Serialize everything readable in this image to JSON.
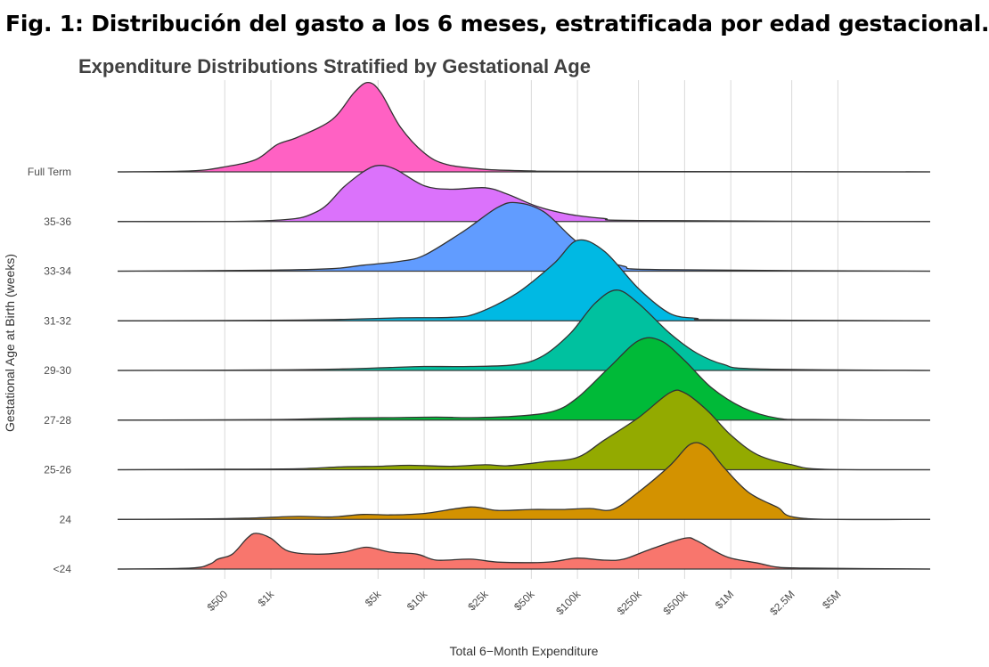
{
  "figure_caption": "Fig. 1: Distribución del gasto a los 6 meses, estratificada por edad gestacional.",
  "chart_data": {
    "type": "area",
    "subtype": "ridgeline-density",
    "title": "Expenditure Distributions Stratified by Gestational Age",
    "xlabel": "Total 6−Month Expenditure",
    "ylabel": "Gestational Age at Birth (weeks)",
    "x_scale": "log10",
    "xlim": [
      100,
      20000000
    ],
    "x_ticks": [
      {
        "value": 500,
        "label": "$500"
      },
      {
        "value": 1000,
        "label": "$1k"
      },
      {
        "value": 5000,
        "label": "$5k"
      },
      {
        "value": 10000,
        "label": "$10k"
      },
      {
        "value": 25000,
        "label": "$25k"
      },
      {
        "value": 50000,
        "label": "$50k"
      },
      {
        "value": 100000,
        "label": "$100k"
      },
      {
        "value": 250000,
        "label": "$250k"
      },
      {
        "value": 500000,
        "label": "$500k"
      },
      {
        "value": 1000000,
        "label": "$1M"
      },
      {
        "value": 2500000,
        "label": "$2.5M"
      },
      {
        "value": 5000000,
        "label": "$5M"
      }
    ],
    "grid": true,
    "legend": "none",
    "density_unit": "relative height (ridge spacing = 1)",
    "series": [
      {
        "name": "<24",
        "color": "#F8766D",
        "points": [
          [
            100,
            0
          ],
          [
            300,
            0.02
          ],
          [
            400,
            0.1
          ],
          [
            450,
            0.2
          ],
          [
            560,
            0.3
          ],
          [
            700,
            0.62
          ],
          [
            800,
            0.72
          ],
          [
            1000,
            0.62
          ],
          [
            1300,
            0.36
          ],
          [
            2000,
            0.3
          ],
          [
            3000,
            0.34
          ],
          [
            4200,
            0.44
          ],
          [
            6000,
            0.34
          ],
          [
            9000,
            0.3
          ],
          [
            12000,
            0.18
          ],
          [
            20000,
            0.2
          ],
          [
            30000,
            0.14
          ],
          [
            50000,
            0.13
          ],
          [
            70000,
            0.15
          ],
          [
            100000,
            0.22
          ],
          [
            150000,
            0.18
          ],
          [
            200000,
            0.2
          ],
          [
            300000,
            0.4
          ],
          [
            500000,
            0.62
          ],
          [
            600000,
            0.57
          ],
          [
            800000,
            0.35
          ],
          [
            1000000,
            0.22
          ],
          [
            1500000,
            0.12
          ],
          [
            2000000,
            0.04
          ],
          [
            3000000,
            0.02
          ],
          [
            20000000,
            0
          ]
        ]
      },
      {
        "name": "24",
        "color": "#D39200",
        "points": [
          [
            100,
            0
          ],
          [
            400,
            0.01
          ],
          [
            800,
            0.03
          ],
          [
            1500,
            0.06
          ],
          [
            2500,
            0.05
          ],
          [
            4000,
            0.1
          ],
          [
            6000,
            0.09
          ],
          [
            10000,
            0.12
          ],
          [
            20000,
            0.25
          ],
          [
            30000,
            0.18
          ],
          [
            50000,
            0.2
          ],
          [
            80000,
            0.2
          ],
          [
            120000,
            0.22
          ],
          [
            170000,
            0.2
          ],
          [
            250000,
            0.55
          ],
          [
            400000,
            1.08
          ],
          [
            550000,
            1.52
          ],
          [
            700000,
            1.45
          ],
          [
            900000,
            1.05
          ],
          [
            1300000,
            0.55
          ],
          [
            2000000,
            0.25
          ],
          [
            3000000,
            0.02
          ],
          [
            20000000,
            0
          ]
        ]
      },
      {
        "name": "25-26",
        "color": "#93AA00",
        "points": [
          [
            100,
            0
          ],
          [
            600,
            0.01
          ],
          [
            1500,
            0.02
          ],
          [
            3000,
            0.06
          ],
          [
            5000,
            0.07
          ],
          [
            8000,
            0.09
          ],
          [
            15000,
            0.07
          ],
          [
            25000,
            0.1
          ],
          [
            35000,
            0.08
          ],
          [
            60000,
            0.16
          ],
          [
            100000,
            0.25
          ],
          [
            150000,
            0.6
          ],
          [
            250000,
            1.05
          ],
          [
            400000,
            1.55
          ],
          [
            500000,
            1.55
          ],
          [
            700000,
            1.2
          ],
          [
            1000000,
            0.7
          ],
          [
            1500000,
            0.3
          ],
          [
            2500000,
            0.1
          ],
          [
            4000000,
            0.01
          ],
          [
            20000000,
            0
          ]
        ]
      },
      {
        "name": "27-28",
        "color": "#00BA38",
        "points": [
          [
            100,
            0
          ],
          [
            1000,
            0.01
          ],
          [
            3000,
            0.04
          ],
          [
            6000,
            0.05
          ],
          [
            12000,
            0.06
          ],
          [
            20000,
            0.05
          ],
          [
            40000,
            0.08
          ],
          [
            70000,
            0.18
          ],
          [
            100000,
            0.45
          ],
          [
            160000,
            1.05
          ],
          [
            250000,
            1.6
          ],
          [
            350000,
            1.6
          ],
          [
            500000,
            1.2
          ],
          [
            750000,
            0.65
          ],
          [
            1200000,
            0.25
          ],
          [
            2000000,
            0.04
          ],
          [
            3500000,
            0.01
          ],
          [
            20000000,
            0
          ]
        ]
      },
      {
        "name": "29-30",
        "color": "#00C19F",
        "points": [
          [
            100,
            0
          ],
          [
            1000,
            0.01
          ],
          [
            3000,
            0.03
          ],
          [
            6000,
            0.06
          ],
          [
            10000,
            0.08
          ],
          [
            20000,
            0.08
          ],
          [
            40000,
            0.12
          ],
          [
            60000,
            0.3
          ],
          [
            90000,
            0.75
          ],
          [
            130000,
            1.35
          ],
          [
            180000,
            1.62
          ],
          [
            250000,
            1.35
          ],
          [
            400000,
            0.75
          ],
          [
            600000,
            0.35
          ],
          [
            900000,
            0.12
          ],
          [
            1500000,
            0.03
          ],
          [
            20000000,
            0
          ]
        ]
      },
      {
        "name": "31-32",
        "color": "#00B9E3",
        "points": [
          [
            100,
            0
          ],
          [
            1000,
            0.01
          ],
          [
            3000,
            0.03
          ],
          [
            7000,
            0.06
          ],
          [
            15000,
            0.07
          ],
          [
            22000,
            0.15
          ],
          [
            40000,
            0.55
          ],
          [
            70000,
            1.15
          ],
          [
            100000,
            1.62
          ],
          [
            150000,
            1.4
          ],
          [
            250000,
            0.65
          ],
          [
            400000,
            0.15
          ],
          [
            600000,
            0.05
          ],
          [
            800000,
            0.02
          ],
          [
            20000000,
            0
          ]
        ]
      },
      {
        "name": "33-34",
        "color": "#619CFF",
        "points": [
          [
            100,
            0
          ],
          [
            1000,
            0.02
          ],
          [
            2500,
            0.05
          ],
          [
            4000,
            0.12
          ],
          [
            7000,
            0.2
          ],
          [
            10000,
            0.32
          ],
          [
            18000,
            0.8
          ],
          [
            30000,
            1.28
          ],
          [
            40000,
            1.38
          ],
          [
            60000,
            1.2
          ],
          [
            90000,
            0.7
          ],
          [
            130000,
            0.3
          ],
          [
            200000,
            0.1
          ],
          [
            350000,
            0.03
          ],
          [
            20000000,
            0
          ]
        ]
      },
      {
        "name": "35-36",
        "color": "#DB72FB",
        "points": [
          [
            100,
            0
          ],
          [
            1000,
            0.02
          ],
          [
            2000,
            0.2
          ],
          [
            3000,
            0.7
          ],
          [
            4000,
            1.0
          ],
          [
            5000,
            1.13
          ],
          [
            6500,
            1.05
          ],
          [
            10000,
            0.72
          ],
          [
            15000,
            0.65
          ],
          [
            25000,
            0.68
          ],
          [
            35000,
            0.55
          ],
          [
            55000,
            0.3
          ],
          [
            90000,
            0.14
          ],
          [
            150000,
            0.06
          ],
          [
            250000,
            0.02
          ],
          [
            20000000,
            0
          ]
        ]
      },
      {
        "name": "Full Term",
        "color": "#FF61C3",
        "points": [
          [
            100,
            0
          ],
          [
            300,
            0.02
          ],
          [
            500,
            0.1
          ],
          [
            800,
            0.25
          ],
          [
            1100,
            0.55
          ],
          [
            1500,
            0.7
          ],
          [
            2500,
            1.05
          ],
          [
            3500,
            1.6
          ],
          [
            4300,
            1.8
          ],
          [
            5200,
            1.6
          ],
          [
            7000,
            0.9
          ],
          [
            10000,
            0.38
          ],
          [
            14000,
            0.15
          ],
          [
            25000,
            0.05
          ],
          [
            50000,
            0.02
          ],
          [
            100000,
            0.01
          ],
          [
            20000000,
            0
          ]
        ]
      }
    ]
  }
}
